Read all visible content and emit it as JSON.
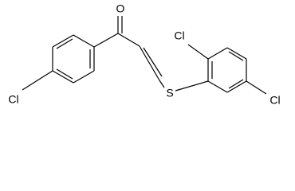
{
  "atoms": [
    {
      "label": "O"
    },
    {
      "label": "Cl"
    },
    {
      "label": "S"
    },
    {
      "label": "Cl"
    },
    {
      "label": "Cl"
    }
  ]
}
